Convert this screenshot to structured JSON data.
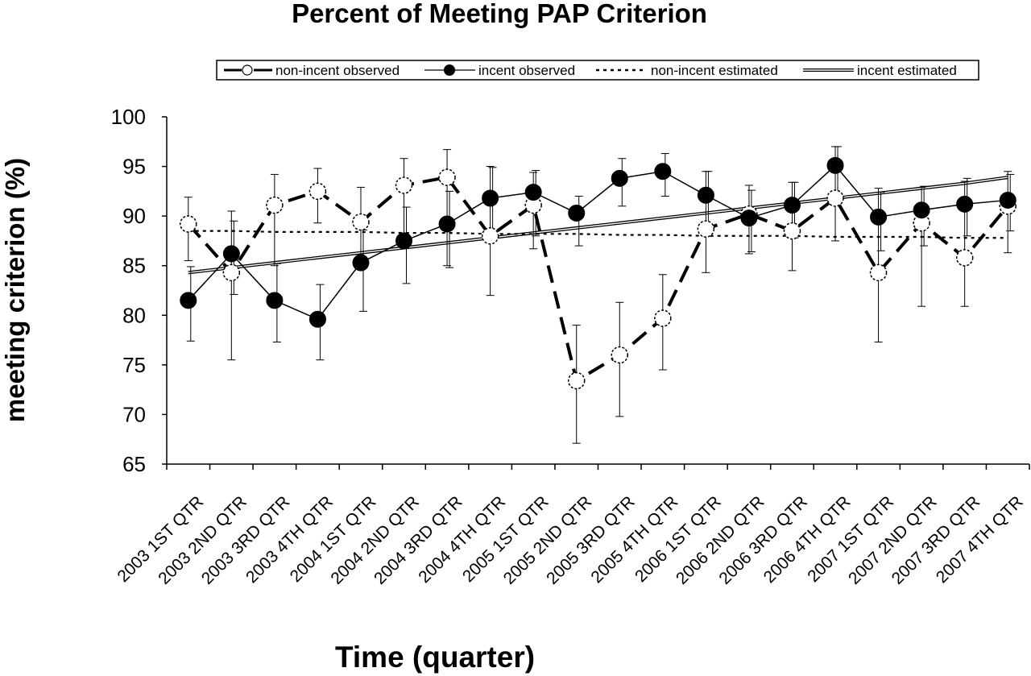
{
  "chart_data": {
    "type": "line",
    "title": "Percent of Meeting PAP Criterion",
    "xlabel": "Time (quarter)",
    "ylabel": "meeting criterion (%)",
    "ylim": [
      65,
      100
    ],
    "yticks": [
      65,
      70,
      75,
      80,
      85,
      90,
      95,
      100
    ],
    "legend_position": "top",
    "grid": false,
    "categories": [
      "2003 1ST QTR",
      "2003 2ND QTR",
      "2003 3RD QTR",
      "2003 4TH QTR",
      "2004 1ST QTR",
      "2004 2ND QTR",
      "2004 3RD QTR",
      "2004 4TH QTR",
      "2005 1ST QTR",
      "2005 2ND QTR",
      "2005 3RD QTR",
      "2005 4TH QTR",
      "2006 1ST QTR",
      "2006 2ND QTR",
      "2006 3RD QTR",
      "2006 4TH QTR",
      "2007 1ST QTR",
      "2007 2ND QTR",
      "2007 3RD QTR",
      "2007 4TH QTR"
    ],
    "series": [
      {
        "name": "non-incent observed",
        "style": "dashed-open-circle",
        "values": [
          89.2,
          84.3,
          91.1,
          92.5,
          89.4,
          93.1,
          93.9,
          88.0,
          91.1,
          73.4,
          76.0,
          79.7,
          88.7,
          90.2,
          88.5,
          91.8,
          84.3,
          89.3,
          85.8,
          91.0
        ],
        "error_low": [
          85.5,
          75.5,
          85.0,
          89.3,
          85.0,
          88.0,
          85.0,
          82.0,
          86.7,
          67.1,
          69.8,
          74.5,
          84.3,
          86.2,
          84.5,
          87.5,
          77.3,
          80.9,
          80.9,
          86.3
        ],
        "error_high": [
          91.9,
          90.5,
          94.2,
          94.8,
          92.9,
          95.8,
          96.7,
          95.0,
          94.4,
          79.0,
          81.3,
          84.1,
          94.5,
          93.1,
          93.4,
          97.0,
          92.8,
          92.9,
          93.5,
          94.5
        ]
      },
      {
        "name": "incent observed",
        "style": "solid-filled-circle",
        "values": [
          81.5,
          86.2,
          81.5,
          79.6,
          85.3,
          87.5,
          89.2,
          91.8,
          92.4,
          90.3,
          93.8,
          94.5,
          92.1,
          89.8,
          91.1,
          95.1,
          89.9,
          90.6,
          91.2,
          91.6
        ],
        "error_low": [
          77.4,
          82.1,
          77.3,
          75.5,
          80.4,
          83.2,
          84.8,
          87.8,
          88.0,
          87.0,
          91.0,
          92.0,
          88.5,
          86.4,
          87.8,
          91.5,
          86.5,
          87.0,
          88.0,
          88.5
        ],
        "error_high": [
          84.9,
          89.5,
          85.2,
          83.1,
          88.6,
          90.9,
          92.5,
          94.9,
          94.6,
          92.0,
          95.8,
          96.3,
          94.5,
          92.6,
          93.4,
          97.0,
          92.4,
          93.0,
          93.8,
          94.2
        ]
      },
      {
        "name": "non-incent estimated",
        "style": "dotted",
        "values": [
          88.5,
          88.5,
          88.4,
          88.4,
          88.4,
          88.3,
          88.3,
          88.2,
          88.2,
          88.2,
          88.1,
          88.1,
          88.0,
          88.0,
          88.0,
          87.9,
          87.9,
          87.9,
          87.8,
          87.8
        ]
      },
      {
        "name": "incent estimated",
        "style": "double-line",
        "values": [
          84.3,
          84.8,
          85.3,
          85.8,
          86.3,
          86.8,
          87.3,
          87.8,
          88.3,
          88.8,
          89.3,
          89.8,
          90.3,
          90.8,
          91.3,
          91.8,
          92.3,
          92.8,
          93.3,
          93.9
        ]
      }
    ]
  }
}
